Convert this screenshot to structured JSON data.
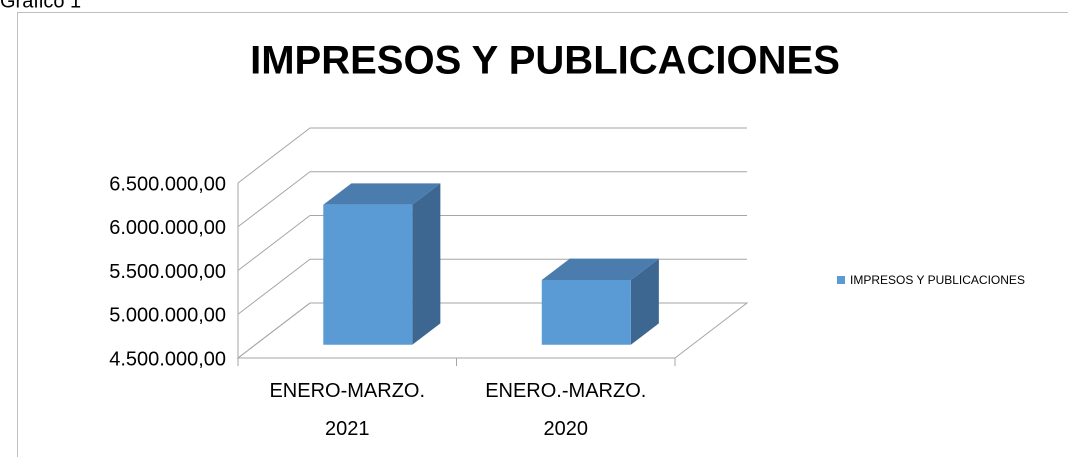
{
  "caption": "Gráfico 1",
  "chart_data": {
    "type": "bar3d",
    "title": "IMPRESOS Y PUBLICACIONES",
    "categories": [
      "ENERO-MARZO. 2021",
      "ENERO.-MARZO. 2020"
    ],
    "series": [
      {
        "name": "IMPRESOS Y PUBLICACIONES",
        "color": "#5b9bd5",
        "values": [
          6100000,
          5240000
        ]
      }
    ],
    "ylim": [
      4500000,
      6500000
    ],
    "yticks": [
      {
        "value": 4500000,
        "label": "4.500.000,00"
      },
      {
        "value": 5000000,
        "label": "5.000.000,00"
      },
      {
        "value": 5500000,
        "label": "5.500.000,00"
      },
      {
        "value": 6000000,
        "label": "6.000.000,00"
      },
      {
        "value": 6500000,
        "label": "6.500.000,00"
      }
    ],
    "grid": true,
    "legend": "right"
  }
}
